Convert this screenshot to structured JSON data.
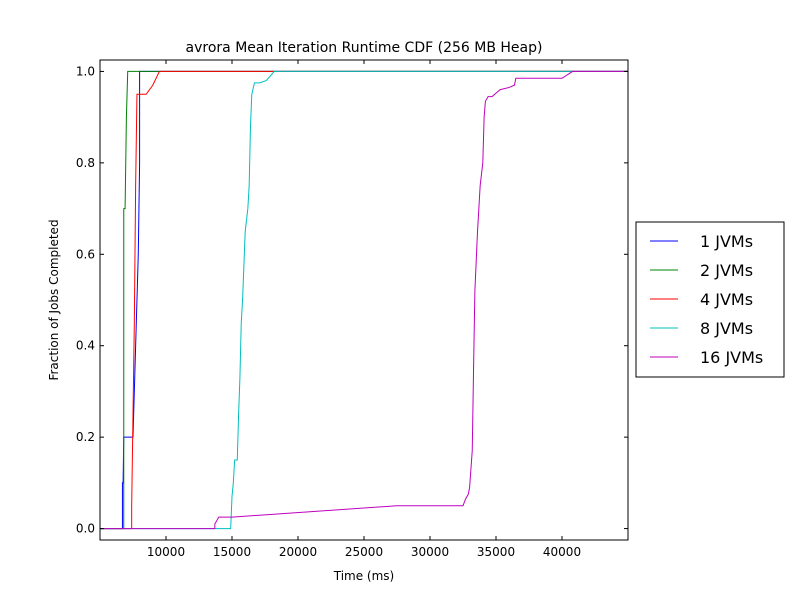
{
  "chart_data": {
    "type": "line",
    "title": "avrora Mean Iteration Runtime CDF (256 MB Heap)",
    "xlabel": "Time (ms)",
    "ylabel": "Fraction of Jobs Completed",
    "xlim": [
      5000,
      45000
    ],
    "ylim": [
      -0.025,
      1.025
    ],
    "xticks": [
      10000,
      15000,
      20000,
      25000,
      30000,
      35000,
      40000
    ],
    "xtick_labels": [
      "10000",
      "15000",
      "20000",
      "25000",
      "30000",
      "35000",
      "40000"
    ],
    "yticks": [
      0.0,
      0.2,
      0.4,
      0.6,
      0.8,
      1.0
    ],
    "ytick_labels": [
      "0.0",
      "0.2",
      "0.4",
      "0.6",
      "0.8",
      "1.0"
    ],
    "grid": false,
    "legend_position": "outside-right",
    "series": [
      {
        "name": "1 JVMs",
        "color": "#0000ff",
        "points": [
          [
            5000,
            0
          ],
          [
            6700,
            0
          ],
          [
            6700,
            0.1
          ],
          [
            6750,
            0.1
          ],
          [
            6800,
            0.2
          ],
          [
            7500,
            0.2
          ],
          [
            7600,
            0.3
          ],
          [
            7900,
            0.6
          ],
          [
            8000,
            0.8
          ],
          [
            8000,
            1.0
          ],
          [
            45000,
            1.0
          ]
        ]
      },
      {
        "name": "2 JVMs",
        "color": "#008000",
        "points": [
          [
            5000,
            0
          ],
          [
            6800,
            0
          ],
          [
            6800,
            0.7
          ],
          [
            6900,
            0.7
          ],
          [
            7000,
            0.9
          ],
          [
            7100,
            1.0
          ],
          [
            45000,
            1.0
          ]
        ]
      },
      {
        "name": "4 JVMs",
        "color": "#ff0000",
        "points": [
          [
            5000,
            0
          ],
          [
            7400,
            0
          ],
          [
            7400,
            0.05
          ],
          [
            7600,
            0.45
          ],
          [
            7700,
            0.75
          ],
          [
            7800,
            0.95
          ],
          [
            8200,
            0.95
          ],
          [
            8500,
            0.95
          ],
          [
            9000,
            0.97
          ],
          [
            9500,
            1.0
          ],
          [
            45000,
            1.0
          ]
        ]
      },
      {
        "name": "8 JVMs",
        "color": "#00bfbf",
        "points": [
          [
            5000,
            0
          ],
          [
            14900,
            0
          ],
          [
            15000,
            0.07
          ],
          [
            15100,
            0.1
          ],
          [
            15200,
            0.15
          ],
          [
            15400,
            0.15
          ],
          [
            15500,
            0.25
          ],
          [
            15600,
            0.33
          ],
          [
            15700,
            0.45
          ],
          [
            15800,
            0.5
          ],
          [
            16000,
            0.65
          ],
          [
            16200,
            0.7
          ],
          [
            16300,
            0.75
          ],
          [
            16400,
            0.88
          ],
          [
            16500,
            0.95
          ],
          [
            16700,
            0.975
          ],
          [
            17100,
            0.975
          ],
          [
            17600,
            0.98
          ],
          [
            18200,
            1.0
          ],
          [
            45000,
            1.0
          ]
        ]
      },
      {
        "name": "16 JVMs",
        "color": "#bf00bf",
        "points": [
          [
            5000,
            0
          ],
          [
            13700,
            0
          ],
          [
            13700,
            0.01
          ],
          [
            14000,
            0.025
          ],
          [
            15000,
            0.025
          ],
          [
            27500,
            0.05
          ],
          [
            32500,
            0.05
          ],
          [
            32700,
            0.065
          ],
          [
            32900,
            0.075
          ],
          [
            33000,
            0.09
          ],
          [
            33200,
            0.17
          ],
          [
            33300,
            0.35
          ],
          [
            33400,
            0.52
          ],
          [
            33600,
            0.65
          ],
          [
            33800,
            0.75
          ],
          [
            34000,
            0.8
          ],
          [
            34100,
            0.9
          ],
          [
            34200,
            0.935
          ],
          [
            34400,
            0.945
          ],
          [
            34700,
            0.945
          ],
          [
            35300,
            0.96
          ],
          [
            36000,
            0.965
          ],
          [
            36400,
            0.97
          ],
          [
            36500,
            0.985
          ],
          [
            40000,
            0.985
          ],
          [
            40800,
            1.0
          ],
          [
            45000,
            1.0
          ]
        ]
      }
    ]
  }
}
